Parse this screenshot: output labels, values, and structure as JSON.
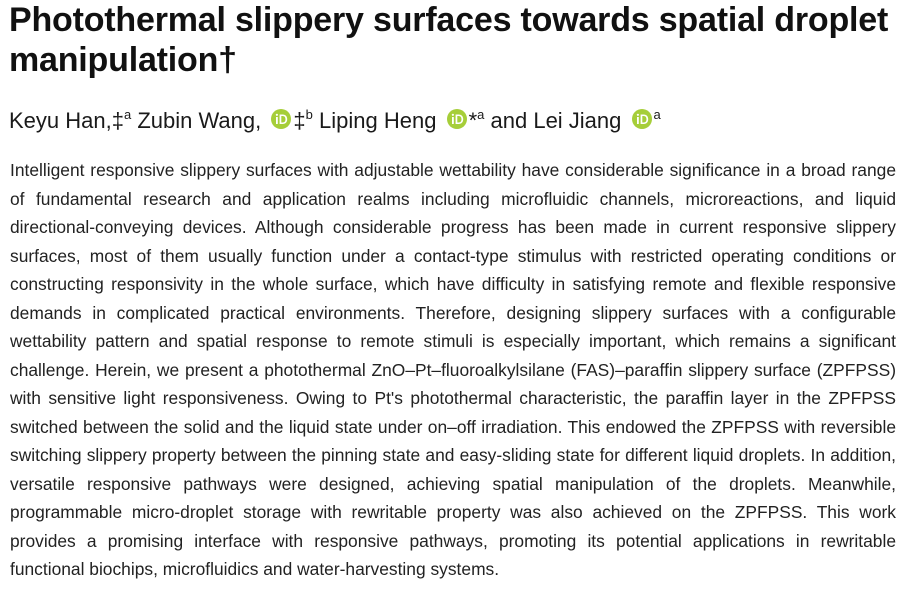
{
  "title": "Photothermal slippery surfaces towards spatial droplet manipulation†",
  "authors": [
    {
      "name": "Keyu Han,",
      "marks": "‡",
      "affiliation": "a"
    },
    {
      "name": "Zubin Wang,",
      "marks": "‡",
      "affiliation": "b"
    },
    {
      "name": "Liping Heng",
      "marks": "*",
      "affiliation": "a"
    },
    {
      "name": "Lei Jiang",
      "marks": "",
      "affiliation": "a"
    }
  ],
  "conjunction": "and",
  "abstract": "Intelligent responsive slippery surfaces with adjustable wettability have considerable significance in a broad range of fundamental research and application realms including microfluidic channels, microreactions, and liquid directional-conveying devices. Although considerable progress has been made in current responsive slippery surfaces, most of them usually function under a contact-type stimulus with restricted operating conditions or constructing responsivity in the whole surface, which have difficulty in satisfying remote and flexible responsive demands in complicated practical environments. Therefore, designing slippery surfaces with a configurable wettability pattern and spatial response to remote stimuli is especially important, which remains a significant challenge. Herein, we present a photothermal ZnO–Pt–fluoroalkylsilane (FAS)–paraffin slippery surface (ZPFPSS) with sensitive light responsiveness. Owing to Pt's photothermal characteristic, the paraffin layer in the ZPFPSS switched between the solid and the liquid state under on–off irradiation. This endowed the ZPFPSS with reversible switching slippery property between the pinning state and easy-sliding state for different liquid droplets. In addition, versatile responsive pathways were designed, achieving spatial manipulation of the droplets. Meanwhile, programmable micro-droplet storage with rewritable property was also achieved on the ZPFPSS. This work provides a promising interface with responsive pathways, promoting its potential applications in rewritable functional biochips, microfluidics and water-harvesting systems."
}
